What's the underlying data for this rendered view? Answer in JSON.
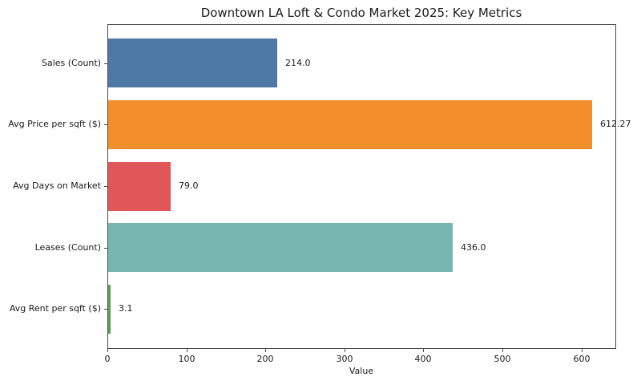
{
  "chart_data": {
    "type": "bar",
    "orientation": "horizontal",
    "title": "Downtown LA Loft & Condo Market 2025: Key Metrics",
    "xlabel": "Value",
    "ylabel": "",
    "categories": [
      "Sales (Count)",
      "Avg Price per sqft ($)",
      "Avg Days on Market",
      "Leases (Count)",
      "Avg Rent per sqft ($)"
    ],
    "values": [
      214.0,
      612.27,
      79.0,
      436.0,
      3.1
    ],
    "value_labels": [
      "214.0",
      "612.27",
      "79.0",
      "436.0",
      "3.1"
    ],
    "bar_colors": [
      "#4e79a7",
      "#f28e2b",
      "#e15759",
      "#76b7b2",
      "#59a14f"
    ],
    "xlim": [
      0,
      643
    ],
    "x_ticks": [
      "0",
      "100",
      "200",
      "300",
      "400",
      "500",
      "600"
    ],
    "x_tick_values": [
      0,
      100,
      200,
      300,
      400,
      500,
      600
    ],
    "grid": false,
    "legend": "none",
    "background_color": "#ffffff",
    "spine_color": "#4a4a4a",
    "text_color": "#1a1a1a"
  }
}
